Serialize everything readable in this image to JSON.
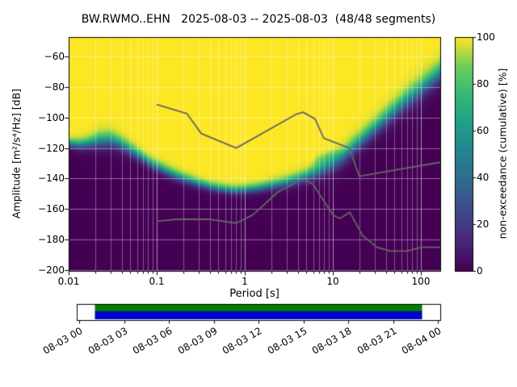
{
  "chart_data": {
    "type": "heatmap",
    "title": "BW.RWMO..EHN   2025-08-03 -- 2025-08-03  (48/48 segments)",
    "xlabel": "Period [s]",
    "ylabel": "Amplitude [m²/s⁴/Hz] [dB]",
    "x_scale": "log",
    "xlim": [
      0.01,
      166
    ],
    "ylim": [
      -200.5,
      -47.3
    ],
    "grid": true,
    "x_tick_values": [
      0.01,
      0.1,
      1,
      10,
      100
    ],
    "x_tick_labels": [
      "0.01",
      "0.1",
      "1",
      "10",
      "100"
    ],
    "y_tick_values": [
      -60,
      -80,
      -100,
      -120,
      -140,
      -160,
      -180,
      -200
    ],
    "y_tick_labels": [
      "−60",
      "−80",
      "−100",
      "−120",
      "−140",
      "−160",
      "−180",
      "−200"
    ],
    "colorbar": {
      "label": "non-exceedance (cumulative) [%]",
      "range": [
        0,
        100
      ],
      "tick_values": [
        0,
        20,
        40,
        60,
        80,
        100
      ],
      "tick_labels": [
        "0",
        "20",
        "40",
        "60",
        "80",
        "100"
      ],
      "colormap": "viridis"
    },
    "colormap_stops": [
      [
        0.0,
        68,
        1,
        84
      ],
      [
        0.125,
        72,
        40,
        120
      ],
      [
        0.25,
        62,
        74,
        137
      ],
      [
        0.375,
        49,
        104,
        142
      ],
      [
        0.5,
        38,
        130,
        142
      ],
      [
        0.625,
        31,
        158,
        137
      ],
      [
        0.75,
        53,
        183,
        121
      ],
      [
        0.875,
        109,
        205,
        89
      ],
      [
        1.0,
        253,
        231,
        37
      ]
    ],
    "distribution": {
      "comment": "PPSD non-exceedance: per period, median dB of transition, transition half-width, optional secondary mode",
      "periods_s": [
        0.01,
        0.013,
        0.017,
        0.022,
        0.03,
        0.04,
        0.055,
        0.07,
        0.09,
        0.12,
        0.16,
        0.22,
        0.3,
        0.4,
        0.55,
        0.75,
        1.0,
        1.4,
        1.9,
        2.6,
        3.5,
        4.8,
        6.5,
        8.8,
        12.0,
        16.0,
        22.0,
        30.0,
        41.0,
        55.0,
        75.0,
        101.0,
        137.0,
        170.0
      ],
      "median_db": [
        -117,
        -118,
        -117,
        -115.5,
        -115,
        -118,
        -123,
        -127,
        -131,
        -134.5,
        -138,
        -141,
        -143.5,
        -145.5,
        -147,
        -148,
        -147.5,
        -146.5,
        -145,
        -143.5,
        -141.5,
        -139,
        -136.5,
        -133,
        -128,
        -121,
        -114,
        -107,
        -100,
        -93.5,
        -87,
        -81,
        -74.5,
        -70
      ],
      "spread_db": [
        2.5,
        3.0,
        3.5,
        4.5,
        4.5,
        4.0,
        3.5,
        3.0,
        3.0,
        3.0,
        3.0,
        2.8,
        2.6,
        2.5,
        2.5,
        2.5,
        2.5,
        2.6,
        2.8,
        3.0,
        3.2,
        3.5,
        4.0,
        4.5,
        5.0,
        5.0,
        5.0,
        5.0,
        5.5,
        5.5,
        6.0,
        6.0,
        6.0,
        6.0
      ],
      "secondary_weight": [
        0,
        0,
        0,
        0,
        0,
        0,
        0,
        0,
        0,
        0,
        0,
        0,
        0,
        0,
        0,
        0,
        0,
        0,
        0,
        0,
        0,
        0,
        0.1,
        0.2,
        0.15,
        0,
        0,
        0,
        0,
        0,
        0,
        0,
        0,
        0
      ],
      "secondary_db": [
        -117,
        -118,
        -117,
        -115.5,
        -115,
        -118,
        -123,
        -127,
        -131,
        -134.5,
        -138,
        -141,
        -143.5,
        -145.5,
        -147,
        -148,
        -147.5,
        -146.5,
        -145,
        -143.5,
        -141.5,
        -139,
        -126,
        -124,
        -122,
        -121,
        -114,
        -107,
        -100,
        -93.5,
        -87,
        -81,
        -74.5,
        -70
      ]
    },
    "noise_models": {
      "color": "#666666",
      "nhnm": {
        "periods_s": [
          0.1,
          0.22,
          0.32,
          0.8,
          3.8,
          4.6,
          6.3,
          7.9,
          15.4,
          20.0,
          354.8
        ],
        "db": [
          -91.5,
          -97.4,
          -110.5,
          -120.0,
          -98.0,
          -96.5,
          -101.0,
          -113.5,
          -120.0,
          -138.5,
          -126.0
        ]
      },
      "nlnm": {
        "periods_s": [
          0.1,
          0.17,
          0.4,
          0.8,
          1.24,
          2.4,
          4.3,
          5.0,
          6.0,
          10.0,
          12.0,
          15.6,
          21.9,
          31.6,
          45.0,
          70.0,
          101.0,
          154.0,
          328.0
        ],
        "db": [
          -168.0,
          -166.7,
          -166.7,
          -169.2,
          -163.7,
          -148.6,
          -141.1,
          -141.1,
          -144.0,
          -163.8,
          -166.2,
          -162.1,
          -177.5,
          -185.0,
          -187.5,
          -187.5,
          -185.0,
          -185.0,
          -187.5
        ]
      }
    },
    "timeline": {
      "tick_labels": [
        "08-03 00",
        "08-03 03",
        "08-03 06",
        "08-03 09",
        "08-03 12",
        "08-03 15",
        "08-03 18",
        "08-03 21",
        "08-04 00"
      ],
      "data_color": "#0000cc",
      "processed_color": "#008000",
      "coverage_start_frac": 0.05,
      "coverage_end_frac": 0.95
    }
  }
}
